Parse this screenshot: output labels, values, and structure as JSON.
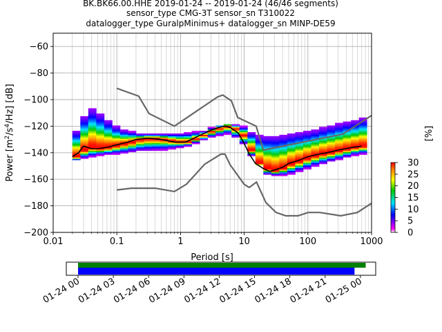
{
  "header": {
    "line1": "BK.BK66.00.HHE   2019-01-24 -- 2019-01-24  (46/46 segments)",
    "line2": "sensor_type CMG-3T sensor_sn T310022",
    "line3": "datalogger_type GuralpMinimus+ datalogger_sn MINP-DE59"
  },
  "chart_data": [
    {
      "type": "heatmap",
      "title": "",
      "xlabel": "Period [s]",
      "ylabel": "Power [m²/s⁴/Hz] [dB]",
      "xscale": "log",
      "xlim": [
        0.01,
        1000
      ],
      "ylim": [
        -200,
        -50
      ],
      "x_ticks": [
        "0.01",
        "0.1",
        "1",
        "10",
        "100",
        "1000"
      ],
      "y_ticks": [
        "−200",
        "−180",
        "−160",
        "−140",
        "−120",
        "−100",
        "−80",
        "−60"
      ],
      "grid": true,
      "colorbar": {
        "label": "[%]",
        "min": 0,
        "max": 30,
        "ticks": [
          "0",
          "5",
          "10",
          "15",
          "20",
          "25",
          "30"
        ]
      },
      "mode_curve": {
        "name": "mode",
        "x": [
          0.02,
          0.025,
          0.03,
          0.04,
          0.05,
          0.07,
          0.1,
          0.15,
          0.2,
          0.3,
          0.5,
          0.8,
          1.2,
          2,
          3,
          4,
          5,
          6,
          8,
          10,
          12,
          15,
          20,
          25,
          30,
          40,
          50,
          70,
          100,
          150,
          200,
          300,
          500,
          700
        ],
        "y": [
          -143,
          -140,
          -135,
          -137,
          -137,
          -136,
          -134,
          -132,
          -130,
          -129,
          -130,
          -132,
          -132,
          -127,
          -123,
          -121,
          -120,
          -121,
          -125,
          -133,
          -141,
          -148,
          -152,
          -154,
          -153,
          -151,
          -148,
          -146,
          -143,
          -141,
          -140,
          -138,
          -136,
          -135
        ]
      },
      "upper_range": {
        "x": [
          0.02,
          0.025,
          0.03,
          0.04,
          0.05,
          0.07,
          0.1,
          0.2,
          0.3,
          0.5,
          1,
          2,
          3,
          5,
          8,
          10,
          15,
          20,
          30,
          50,
          100,
          200,
          500,
          700
        ],
        "y": [
          -124,
          -117,
          -106,
          -109,
          -112,
          -118,
          -123,
          -126,
          -126,
          -126,
          -126,
          -124,
          -121,
          -119,
          -120,
          -124,
          -128,
          -128,
          -128,
          -126,
          -124,
          -120,
          -116,
          -114
        ]
      },
      "lower_range": {
        "x": [
          0.02,
          0.03,
          0.05,
          0.1,
          0.2,
          0.5,
          1,
          2,
          3,
          5,
          8,
          10,
          15,
          20,
          30,
          50,
          100,
          200,
          500,
          700
        ],
        "y": [
          -145,
          -143,
          -141,
          -140,
          -138,
          -137,
          -135,
          -130,
          -127,
          -125,
          -131,
          -139,
          -149,
          -156,
          -157,
          -155,
          -150,
          -146,
          -141,
          -140
        ]
      },
      "noise_models": {
        "high": {
          "x": [
            0.1,
            0.22,
            0.32,
            0.8,
            3.8,
            4.6,
            6.3,
            7.9,
            15.4,
            20,
            354.8,
            1000
          ],
          "y": [
            -91.5,
            -97.4,
            -110.5,
            -120,
            -98,
            -96.5,
            -101,
            -113.5,
            -120,
            -138,
            -126,
            -112
          ]
        },
        "low": {
          "x": [
            0.1,
            0.17,
            0.4,
            0.8,
            1.24,
            2.4,
            4.3,
            5,
            6,
            10,
            12,
            15.6,
            21.9,
            31.6,
            45,
            70,
            101,
            154,
            328,
            600,
            1000
          ],
          "y": [
            -168,
            -166.7,
            -166.7,
            -169.2,
            -163.7,
            -148.6,
            -141.1,
            -141.1,
            -149,
            -163.8,
            -166.2,
            -162.1,
            -177.5,
            -185,
            -187.5,
            -187.5,
            -185,
            -185,
            -187.5,
            -185,
            -178
          ]
        }
      }
    },
    {
      "type": "bar",
      "title": "",
      "xlabel": "",
      "ylabel": "",
      "xlim": [
        -1,
        25.3
      ],
      "x_ticks": [
        "01-24 00",
        "01-24 03",
        "01-24 06",
        "01-24 09",
        "01-24 12",
        "01-24 15",
        "01-24 18",
        "01-24 21",
        "01-25 00"
      ],
      "series": [
        {
          "bands": [
            [
              0,
              24.45
            ]
          ],
          "color": "#008000"
        },
        {
          "bands": [
            [
              0,
              23.5
            ]
          ],
          "color": "#0000ff"
        }
      ]
    }
  ]
}
